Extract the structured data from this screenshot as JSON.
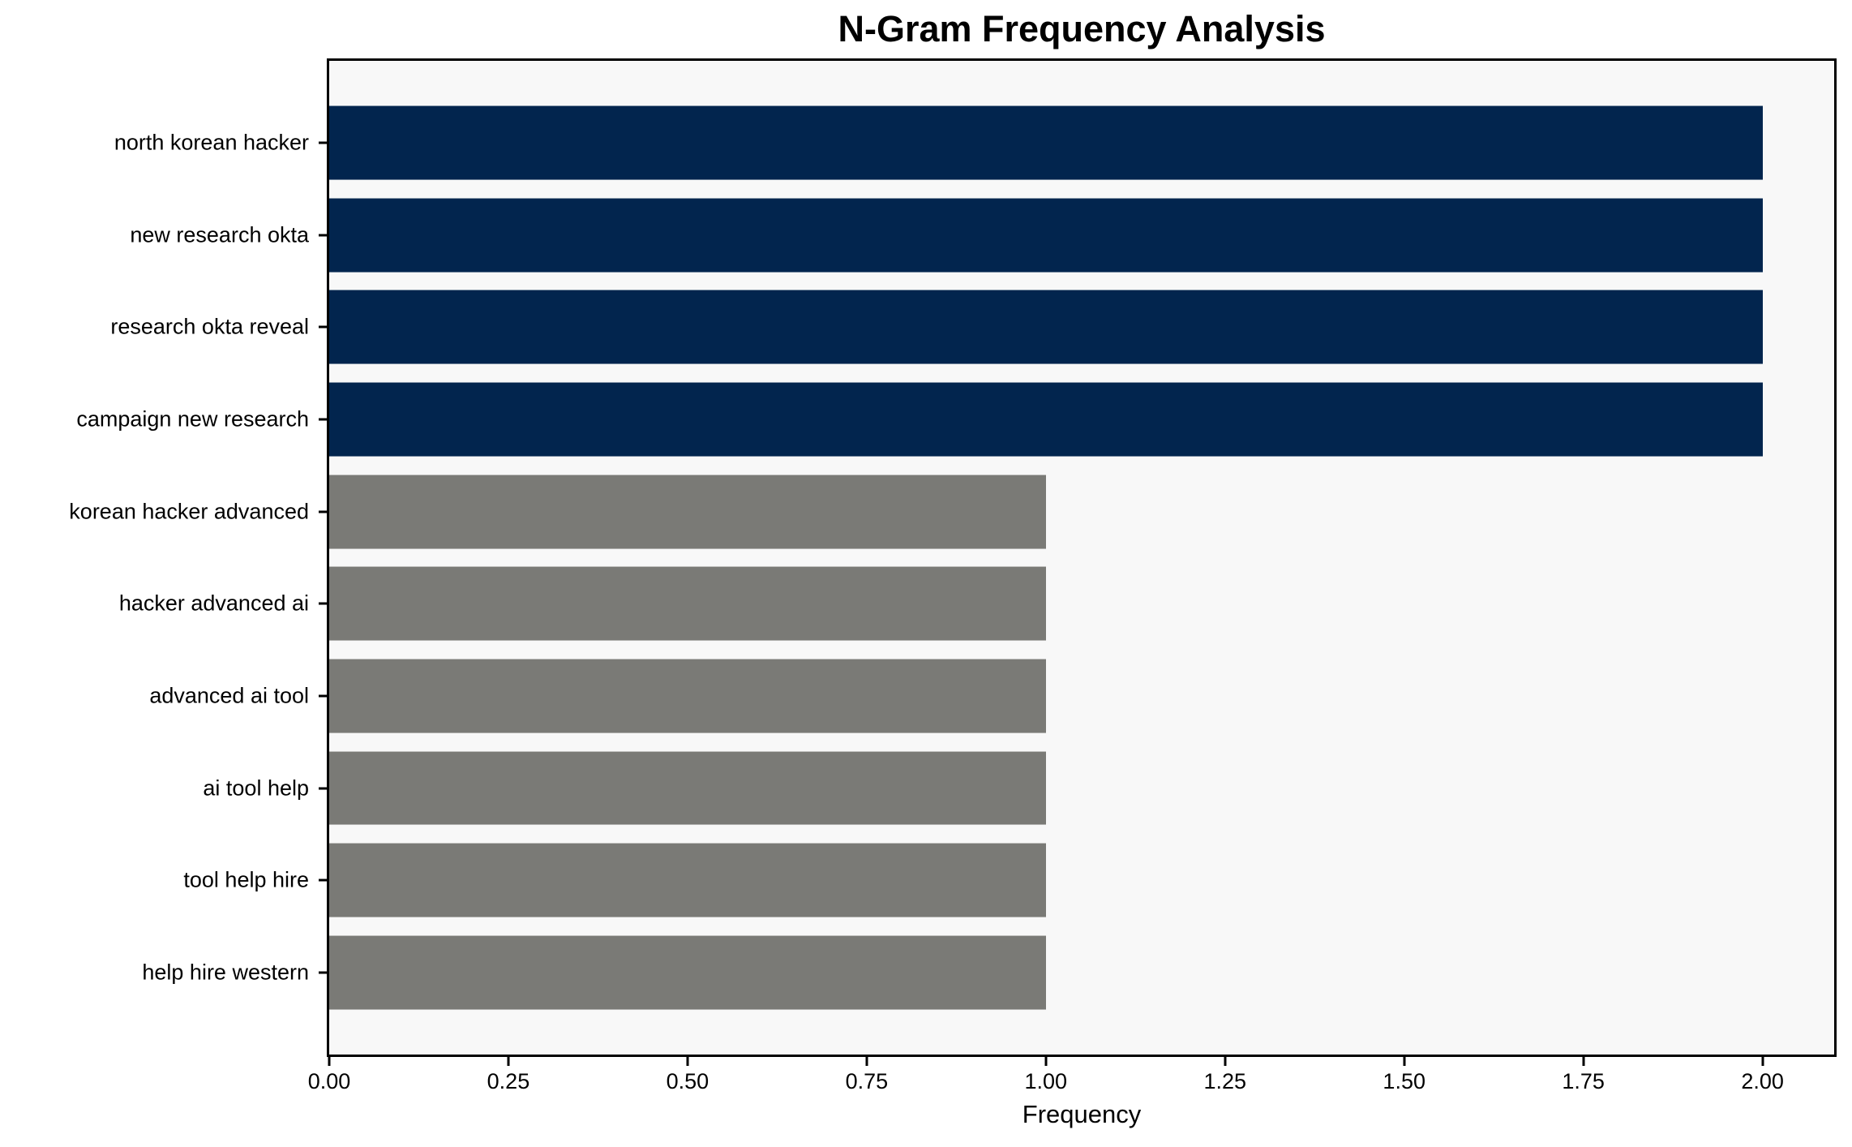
{
  "chart_data": {
    "type": "bar",
    "orientation": "horizontal",
    "title": "N-Gram Frequency Analysis",
    "xlabel": "Frequency",
    "ylabel": "",
    "categories": [
      "north korean hacker",
      "new research okta",
      "research okta reveal",
      "campaign new research",
      "korean hacker advanced",
      "hacker advanced ai",
      "advanced ai tool",
      "ai tool help",
      "tool help hire",
      "help hire western"
    ],
    "values": [
      2,
      2,
      2,
      2,
      1,
      1,
      1,
      1,
      1,
      1
    ],
    "bar_colors": [
      "#02254e",
      "#02254e",
      "#02254e",
      "#02254e",
      "#7a7a76",
      "#7a7a76",
      "#7a7a76",
      "#7a7a76",
      "#7a7a76",
      "#7a7a76"
    ],
    "xlim": [
      0,
      2.1
    ],
    "xticks": [
      0,
      0.25,
      0.5,
      0.75,
      1.0,
      1.25,
      1.5,
      1.75,
      2.0
    ],
    "xtick_labels": [
      "0.00",
      "0.25",
      "0.50",
      "0.75",
      "1.00",
      "1.25",
      "1.50",
      "1.75",
      "2.00"
    ],
    "grid": false,
    "legend": "none",
    "plot_background": "#f8f8f8",
    "figure_background": "#ffffff",
    "axis_color": "#000000",
    "layout": {
      "first_center_offset_slots": 0.89,
      "y_span_slots": 10.78,
      "bar_height_slots": 0.8
    }
  }
}
